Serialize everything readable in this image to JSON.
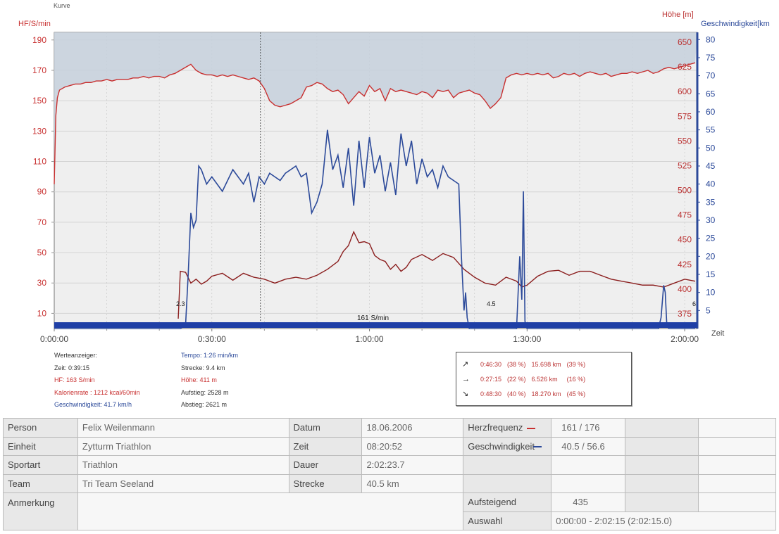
{
  "chart_data": {
    "type": "line",
    "title": "Kurve",
    "x_axis": {
      "label": "Zeit",
      "ticks": [
        "0:00:00",
        "0:30:00",
        "1:00:00",
        "1:30:00",
        "2:00:00"
      ],
      "range_min": [
        0,
        122.4
      ]
    },
    "left_axis": {
      "label": "HF/S/min",
      "ticks": [
        10,
        30,
        50,
        70,
        90,
        110,
        130,
        150,
        170,
        190
      ],
      "range": [
        0,
        195
      ]
    },
    "right_axis_altitude": {
      "label": "Höhe [m]",
      "ticks": [
        375,
        400,
        425,
        450,
        475,
        500,
        525,
        550,
        575,
        600,
        625,
        650
      ],
      "range": [
        360,
        660
      ]
    },
    "right_axis_speed": {
      "label": "Geschwindigkeit[km",
      "ticks": [
        5,
        10,
        15,
        20,
        25,
        30,
        35,
        40,
        45,
        50,
        55,
        60,
        65,
        70,
        75,
        80
      ],
      "range": [
        0,
        82
      ]
    },
    "grid": true,
    "cursor_time_min": 39.25,
    "hr_threshold_label": "161 S/min",
    "markers": [
      "2.3",
      "4.5",
      "6"
    ],
    "series": [
      {
        "name": "Herzfrequenz",
        "axis": "left",
        "color": "#c83030",
        "x": [
          0,
          0.3,
          0.6,
          1,
          2,
          3,
          4,
          5,
          6,
          7,
          8,
          9,
          10,
          11,
          12,
          13,
          14,
          15,
          16,
          17,
          18,
          19,
          20,
          21,
          22,
          23,
          24,
          25,
          26,
          27,
          28,
          29,
          30,
          31,
          32,
          33,
          34,
          35,
          36,
          37,
          38,
          39,
          40,
          41,
          42,
          43,
          44,
          45,
          46,
          47,
          48,
          49,
          50,
          51,
          52,
          53,
          54,
          55,
          56,
          57,
          58,
          59,
          60,
          61,
          62,
          63,
          64,
          65,
          66,
          67,
          68,
          69,
          70,
          71,
          72,
          73,
          74,
          75,
          76,
          77,
          78,
          79,
          80,
          81,
          82,
          83,
          84,
          85,
          86,
          87,
          88,
          89,
          90,
          91,
          92,
          93,
          94,
          95,
          96,
          97,
          98,
          99,
          100,
          101,
          102,
          103,
          104,
          105,
          106,
          107,
          108,
          109,
          110,
          111,
          112,
          113,
          114,
          115,
          116,
          117,
          118,
          119,
          120,
          121,
          122
        ],
        "y": [
          95,
          140,
          152,
          157,
          159,
          160,
          161,
          161,
          162,
          162,
          163,
          163,
          164,
          163,
          164,
          164,
          164,
          165,
          165,
          166,
          165,
          166,
          166,
          165,
          167,
          168,
          170,
          172,
          174,
          170,
          168,
          167,
          167,
          166,
          167,
          166,
          167,
          166,
          165,
          164,
          165,
          163,
          158,
          150,
          147,
          146,
          147,
          148,
          150,
          152,
          159,
          160,
          162,
          161,
          158,
          156,
          157,
          154,
          148,
          152,
          156,
          153,
          160,
          156,
          158,
          150,
          158,
          156,
          157,
          156,
          155,
          154,
          156,
          155,
          152,
          157,
          156,
          157,
          152,
          155,
          156,
          157,
          155,
          154,
          150,
          145,
          148,
          152,
          165,
          167,
          168,
          167,
          168,
          167,
          168,
          167,
          168,
          165,
          166,
          168,
          167,
          168,
          166,
          168,
          169,
          168,
          167,
          168,
          166,
          167,
          168,
          168,
          169,
          168,
          169,
          170,
          168,
          169,
          171,
          172,
          171,
          172,
          173,
          174,
          175
        ]
      },
      {
        "name": "Geschwindigkeit",
        "axis": "speed",
        "color": "#2c4a9a",
        "x": [
          0,
          20,
          24,
          25,
          25.5,
          26,
          26.5,
          27,
          27.5,
          28,
          29,
          30,
          31,
          32,
          33,
          34,
          35,
          36,
          37,
          38,
          39,
          40,
          41,
          42,
          43,
          44,
          45,
          46,
          47,
          48,
          49,
          50,
          51,
          52,
          53,
          54,
          55,
          56,
          57,
          58,
          59,
          60,
          61,
          62,
          63,
          64,
          65,
          66,
          67,
          68,
          69,
          70,
          71,
          72,
          73,
          74,
          75,
          76,
          77,
          77.5,
          78,
          78.3,
          78.6,
          79,
          82,
          88,
          88.6,
          89,
          89.3,
          89.6,
          90,
          100,
          115,
          115.5,
          116,
          116.3,
          116.6,
          117,
          122
        ],
        "y": [
          0,
          0,
          0,
          1,
          15,
          32,
          28,
          30,
          45,
          44,
          40,
          42,
          40,
          38,
          41,
          44,
          42,
          40,
          43,
          35,
          42,
          40,
          43,
          42,
          41,
          43,
          44,
          45,
          42,
          43,
          32,
          35,
          40,
          55,
          44,
          48,
          39,
          50,
          34,
          52,
          39,
          53,
          43,
          48,
          38,
          46,
          37,
          54,
          45,
          52,
          40,
          47,
          42,
          44,
          39,
          45,
          42,
          41,
          40,
          20,
          5,
          10,
          3,
          0,
          0,
          0,
          20,
          8,
          38,
          2,
          0,
          0,
          0,
          3,
          12,
          10,
          1,
          0,
          0
        ]
      },
      {
        "name": "Höhe",
        "axis": "altitude",
        "color": "#8b1e1e",
        "x": [
          23.6,
          24,
          25,
          26,
          27,
          28,
          29,
          30,
          32,
          34,
          36,
          38,
          40,
          42,
          44,
          46,
          48,
          50,
          52,
          54,
          55,
          56,
          57,
          58,
          59,
          60,
          61,
          62,
          63,
          64,
          65,
          66,
          67,
          68,
          70,
          72,
          74,
          76,
          78,
          80,
          82,
          84,
          86,
          88,
          89,
          90,
          92,
          94,
          96,
          98,
          100,
          102,
          104,
          106,
          108,
          110,
          112,
          114,
          116,
          118,
          120,
          122
        ],
        "y": [
          370,
          418,
          417,
          406,
          410,
          405,
          408,
          413,
          416,
          409,
          416,
          412,
          410,
          406,
          410,
          412,
          410,
          414,
          420,
          428,
          438,
          444,
          458,
          447,
          448,
          446,
          434,
          430,
          428,
          420,
          425,
          418,
          422,
          430,
          435,
          429,
          436,
          432,
          420,
          412,
          406,
          404,
          412,
          408,
          402,
          404,
          413,
          418,
          419,
          414,
          418,
          418,
          414,
          410,
          408,
          406,
          404,
          404,
          402,
          406,
          410,
          408
        ]
      }
    ]
  },
  "cursor_info": {
    "title": "Werteanzeiger:",
    "zeit": "Zeit: 0:39:15",
    "hf": "HF: 163 S/min",
    "kalorien": "Kalorienrate : 1212 kcal/60min",
    "geschw": "Geschwindigkeit: 41.7 km/h",
    "tempo": "Tempo: 1:26 min/km",
    "strecke": "Strecke: 9.4 km",
    "hoehe": "Höhe: 411 m",
    "aufstieg": "Aufstieg: 2528 m",
    "abstieg": "Abstieg: 2621 m"
  },
  "segments": [
    {
      "icon": "↗",
      "time": "0:46:30",
      "time_pct": "(38 %)",
      "dist": "15.698 km",
      "dist_pct": "(39 %)"
    },
    {
      "icon": "→",
      "time": "0:27:15",
      "time_pct": "(22 %)",
      "dist": "6.526 km",
      "dist_pct": "(16 %)"
    },
    {
      "icon": "↘",
      "time": "0:48:30",
      "time_pct": "(40 %)",
      "dist": "18.270 km",
      "dist_pct": "(45 %)"
    }
  ],
  "info": {
    "person_label": "Person",
    "person": "Felix Weilenmann",
    "einheit_label": "Einheit",
    "einheit": "Zytturm Triathlon",
    "sportart_label": "Sportart",
    "sportart": "Triathlon",
    "team_label": "Team",
    "team": "Tri Team Seeland",
    "anmerkung_label": "Anmerkung",
    "datum_label": "Datum",
    "datum": "18.06.2006",
    "zeit_label": "Zeit",
    "zeit": "08:20:52",
    "dauer_label": "Dauer",
    "dauer": "2:02:23.7",
    "strecke_label": "Strecke",
    "strecke": "40.5 km",
    "hf_label": "Herzfrequenz",
    "hf": "161 / 176",
    "geschw_label": "Geschwindigkeit",
    "geschw": "40.5 / 56.6",
    "aufsteigend_label": "Aufsteigend",
    "aufsteigend": "435",
    "auswahl_label": "Auswahl",
    "auswahl": "0:00:00 - 2:02:15 (2:02:15.0)"
  }
}
